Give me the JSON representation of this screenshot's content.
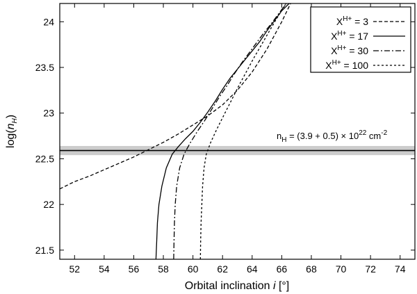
{
  "chart_data": {
    "type": "line",
    "xlabel_main": "Orbital inclination ",
    "xlabel_italic": "i",
    "xlabel_unit": " [°]",
    "ylabel_prefix": "log(",
    "ylabel_n": "n",
    "ylabel_sub": "H",
    "ylabel_suffix": ")",
    "xlim": [
      51,
      75
    ],
    "ylim": [
      21.4,
      24.2
    ],
    "x_ticks": [
      "52",
      "54",
      "56",
      "58",
      "60",
      "62",
      "64",
      "66",
      "68",
      "70",
      "72",
      "74"
    ],
    "x_tick_values": [
      52,
      54,
      56,
      58,
      60,
      62,
      64,
      66,
      68,
      70,
      72,
      74
    ],
    "y_ticks": [
      "21.5",
      "22",
      "22.5",
      "23",
      "23.5",
      "24"
    ],
    "y_tick_values": [
      21.5,
      22,
      22.5,
      23,
      23.5,
      24
    ],
    "grid": false,
    "legend_position": "top-right",
    "band": {
      "label_pre": "n",
      "label_sub": "H",
      "label_mid": " = (3.9 + 0.5) × 10",
      "label_sup": "22",
      "label_unit": " cm",
      "label_unit_sup": "-2",
      "center": 22.59,
      "low": 22.54,
      "high": 22.64,
      "fill": "#cccccc"
    },
    "series": [
      {
        "name": "X",
        "name_sup": "H+",
        "name_value": " = 3",
        "dash": "5,3",
        "x": [
          51,
          52,
          53,
          54,
          55,
          56,
          57,
          58,
          59,
          60,
          61,
          62,
          63,
          64,
          65,
          66,
          66.6
        ],
        "y": [
          22.17,
          22.25,
          22.31,
          22.38,
          22.45,
          22.52,
          22.6,
          22.68,
          22.77,
          22.87,
          22.97,
          23.09,
          23.25,
          23.45,
          23.7,
          24.0,
          24.2
        ]
      },
      {
        "name": "X",
        "name_sup": "H+",
        "name_value": " = 17",
        "dash": "",
        "x": [
          57.5,
          57.55,
          57.6,
          57.7,
          57.9,
          58.2,
          58.6,
          59.0,
          59.5,
          60.0,
          60.5,
          61.0,
          61.5,
          62.0,
          62.5,
          63.0,
          63.5,
          64.0,
          64.5,
          65.0,
          65.5,
          66.0,
          66.5
        ],
        "y": [
          21.4,
          21.6,
          21.8,
          22.0,
          22.2,
          22.4,
          22.55,
          22.63,
          22.72,
          22.8,
          22.9,
          23.01,
          23.13,
          23.26,
          23.38,
          23.48,
          23.58,
          23.68,
          23.78,
          23.9,
          24.01,
          24.12,
          24.2
        ]
      },
      {
        "name": "X",
        "name_sup": "H+",
        "name_value": " = 30",
        "dash": "8,3,2,3",
        "x": [
          58.7,
          58.72,
          58.75,
          58.8,
          58.9,
          59.1,
          59.4,
          59.8,
          60.3,
          60.8,
          61.3,
          61.8,
          62.3,
          62.8,
          63.3,
          63.8,
          64.3,
          64.8,
          65.3,
          65.8,
          66.3
        ],
        "y": [
          21.4,
          21.6,
          21.8,
          22.0,
          22.2,
          22.4,
          22.55,
          22.67,
          22.8,
          22.92,
          23.05,
          23.18,
          23.3,
          23.43,
          23.55,
          23.66,
          23.77,
          23.88,
          23.98,
          24.09,
          24.2
        ]
      },
      {
        "name": "X",
        "name_sup": "H+",
        "name_value": " = 100",
        "dash": "3,3",
        "x": [
          60.5,
          60.52,
          60.55,
          60.6,
          60.65,
          60.75,
          60.9,
          61.2,
          61.6,
          62.1,
          62.6,
          63.1,
          63.6,
          64.1,
          64.6,
          65.1,
          65.6,
          66.1,
          66.3
        ],
        "y": [
          21.4,
          21.6,
          21.8,
          22.0,
          22.2,
          22.4,
          22.55,
          22.68,
          22.82,
          22.98,
          23.14,
          23.3,
          23.45,
          23.6,
          23.74,
          23.88,
          24.02,
          24.15,
          24.2
        ]
      }
    ]
  }
}
